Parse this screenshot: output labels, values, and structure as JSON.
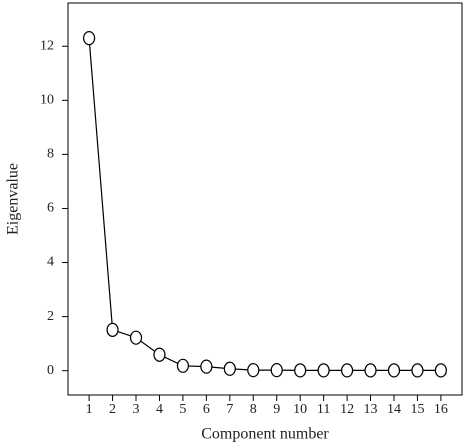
{
  "chart_data": {
    "type": "line",
    "x_label": "Component number",
    "y_label": "Eigenvalue",
    "x": [
      1,
      2,
      3,
      4,
      5,
      6,
      7,
      8,
      9,
      10,
      11,
      12,
      13,
      14,
      15,
      16
    ],
    "series": [
      {
        "color": "#000000",
        "values": [
          12.3,
          1.51,
          1.22,
          0.59,
          0.18,
          0.15,
          0.07,
          0.02,
          0.02,
          0.01,
          0.01,
          0.01,
          0.01,
          0.01,
          0.01,
          0.01
        ]
      }
    ],
    "xlim": [
      0.1,
      16.9
    ],
    "ylim": [
      -0.9,
      13.6
    ],
    "xticks": [
      1,
      2,
      3,
      4,
      5,
      6,
      7,
      8,
      9,
      10,
      11,
      12,
      13,
      14,
      15,
      16
    ],
    "yticks": [
      0,
      2,
      4,
      6,
      8,
      10,
      12
    ],
    "grid": false,
    "marker": "open-circle"
  }
}
